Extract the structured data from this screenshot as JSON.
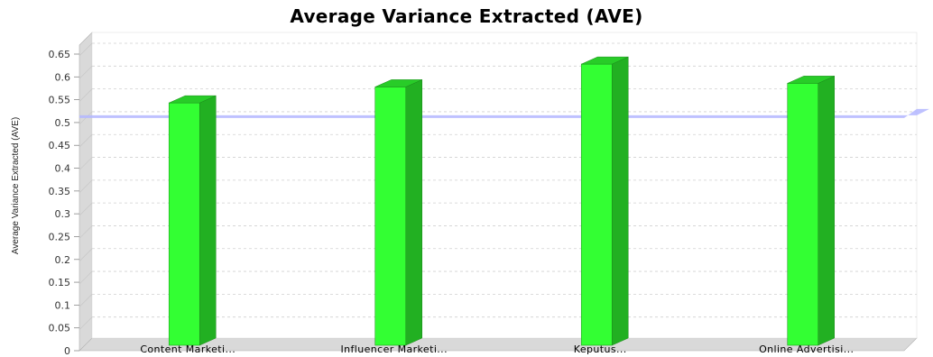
{
  "chart_data": {
    "type": "bar",
    "title": "Average Variance Extracted (AVE)",
    "xlabel": "",
    "ylabel": "Average Variance Extracted (AVE)",
    "categories": [
      "Content Marketi...",
      "Influencer Marketi...",
      "Keputus...",
      "Online Advertisi..."
    ],
    "values": [
      0.547,
      0.582,
      0.632,
      0.59
    ],
    "ylim": [
      0,
      0.65
    ],
    "yticks": [
      "0",
      "0.05",
      "0.1",
      "0.15",
      "0.2",
      "0.25",
      "0.3",
      "0.35",
      "0.4",
      "0.45",
      "0.5",
      "0.55",
      "0.6",
      "0.65"
    ],
    "reference_line": 0.5,
    "grid": true,
    "bar_color": "#33ff33",
    "bar_side_color": "#22b022",
    "bar_top_color": "#28cc28",
    "reference_line_color": "#b3b6ff",
    "wall_color": "#d9d9d9",
    "grid_color": "#d0d0d0"
  }
}
